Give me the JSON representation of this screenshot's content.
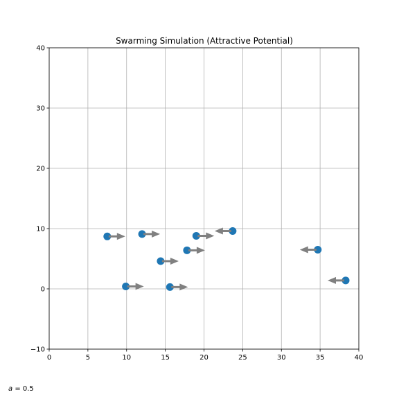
{
  "chart_data": {
    "type": "scatter",
    "title": "Swarming Simulation (Attractive Potential)",
    "xlabel": "",
    "ylabel": "",
    "xlim": [
      0,
      40
    ],
    "ylim": [
      -10,
      40
    ],
    "xticks": [
      0,
      5,
      10,
      15,
      20,
      25,
      30,
      35,
      40
    ],
    "yticks": [
      -10,
      0,
      10,
      20,
      30,
      40
    ],
    "grid": true,
    "colors": {
      "points": "#1f77b4",
      "arrows": "#808080",
      "grid": "#b0b0b0"
    },
    "agents": [
      {
        "x": 7.5,
        "y": 8.7,
        "vx": 1,
        "vy": 0
      },
      {
        "x": 12.0,
        "y": 9.1,
        "vx": 1,
        "vy": 0
      },
      {
        "x": 9.9,
        "y": 0.4,
        "vx": 1,
        "vy": 0
      },
      {
        "x": 14.4,
        "y": 4.6,
        "vx": 1,
        "vy": 0
      },
      {
        "x": 15.6,
        "y": 0.3,
        "vx": 1,
        "vy": 0
      },
      {
        "x": 17.8,
        "y": 6.4,
        "vx": 1,
        "vy": 0
      },
      {
        "x": 19.0,
        "y": 8.8,
        "vx": 1,
        "vy": 0
      },
      {
        "x": 23.7,
        "y": 9.6,
        "vx": -1,
        "vy": 0
      },
      {
        "x": 34.7,
        "y": 6.5,
        "vx": -1,
        "vy": 0
      },
      {
        "x": 38.3,
        "y": 1.4,
        "vx": -1,
        "vy": 0
      }
    ],
    "annotation": "a = 0.5"
  }
}
